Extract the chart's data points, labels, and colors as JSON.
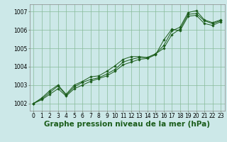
{
  "background_color": "#cce8e8",
  "grid_color": "#88bb99",
  "line_color": "#1a5c1a",
  "title": "Graphe pression niveau de la mer (hPa)",
  "xlim": [
    -0.5,
    23.5
  ],
  "ylim": [
    1001.6,
    1007.4
  ],
  "yticks": [
    1002,
    1003,
    1004,
    1005,
    1006,
    1007
  ],
  "xticks": [
    0,
    1,
    2,
    3,
    4,
    5,
    6,
    7,
    8,
    9,
    10,
    11,
    12,
    13,
    14,
    15,
    16,
    17,
    18,
    19,
    20,
    21,
    22,
    23
  ],
  "series1": [
    1002.0,
    1002.2,
    1002.5,
    1002.8,
    1002.4,
    1002.8,
    1003.0,
    1003.2,
    1003.35,
    1003.5,
    1003.75,
    1004.1,
    1004.25,
    1004.4,
    1004.45,
    1004.65,
    1005.45,
    1006.05,
    1005.95,
    1006.75,
    1006.8,
    1006.35,
    1006.25,
    1006.45
  ],
  "series2": [
    1002.0,
    1002.25,
    1002.6,
    1002.95,
    1002.45,
    1002.9,
    1003.15,
    1003.3,
    1003.4,
    1003.6,
    1003.85,
    1004.25,
    1004.4,
    1004.5,
    1004.5,
    1004.7,
    1005.0,
    1005.75,
    1006.05,
    1006.85,
    1006.9,
    1006.5,
    1006.35,
    1006.5
  ],
  "series3": [
    1002.0,
    1002.3,
    1002.7,
    1003.0,
    1002.5,
    1003.0,
    1003.2,
    1003.45,
    1003.5,
    1003.75,
    1004.05,
    1004.4,
    1004.55,
    1004.55,
    1004.5,
    1004.7,
    1005.15,
    1005.95,
    1006.15,
    1006.95,
    1007.05,
    1006.55,
    1006.4,
    1006.55
  ],
  "title_fontsize": 7.5,
  "tick_fontsize": 5.5
}
